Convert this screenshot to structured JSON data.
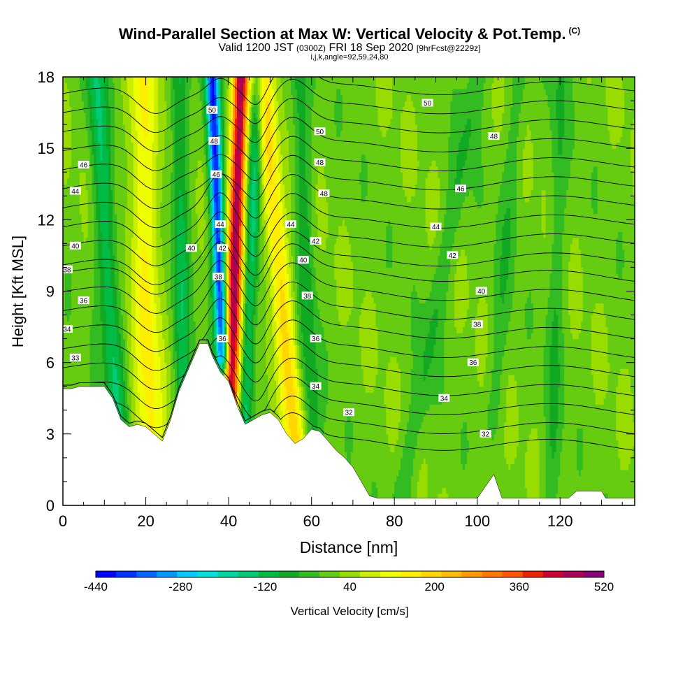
{
  "header": {
    "title": "Wind-Parallel Section at Max W: Vertical Velocity & Pot.Temp.",
    "title_mark": "(C)",
    "valid_prefix": "Valid 1200 JST",
    "valid_utc": "(0300Z)",
    "valid_date": "FRI 18 Sep 2020",
    "forecast": "[9hrFcst@2229z]",
    "params": "i,j,k,angle=92,59,24,80"
  },
  "chart_data": {
    "type": "heatmap",
    "xlabel": "Distance [nm]",
    "ylabel": "Height [Kft MSL]",
    "xlim": [
      0,
      138
    ],
    "ylim": [
      0,
      18
    ],
    "x_ticks": [
      0,
      20,
      40,
      60,
      80,
      100,
      120
    ],
    "y_ticks": [
      0,
      3,
      6,
      9,
      12,
      15,
      18
    ],
    "colorbar": {
      "label": "Vertical Velocity [cm/s]",
      "range": [
        -440,
        520
      ],
      "step": 40,
      "tick_labels": [
        "-440",
        "-280",
        "-120",
        "40",
        "200",
        "360",
        "520"
      ],
      "colors": [
        "#0000ff",
        "#0033ff",
        "#0066ff",
        "#0099ff",
        "#00ccff",
        "#00e0e0",
        "#00d6a0",
        "#00cc77",
        "#00bb44",
        "#11aa22",
        "#33bb22",
        "#66cc11",
        "#99dd00",
        "#ccee00",
        "#eeff00",
        "#ffee00",
        "#ffd700",
        "#ffbb00",
        "#ff9900",
        "#ff7700",
        "#ff5500",
        "#ee2200",
        "#cc0033",
        "#aa0055",
        "#880077"
      ]
    },
    "potential_temperature_contours": {
      "left_labels": [
        {
          "x": 3,
          "y": 6.2,
          "label": "33"
        },
        {
          "x": 1,
          "y": 7.4,
          "label": "34"
        },
        {
          "x": 5,
          "y": 8.6,
          "label": "36"
        },
        {
          "x": 1,
          "y": 9.9,
          "label": "38"
        },
        {
          "x": 3,
          "y": 10.9,
          "label": "40"
        },
        {
          "x": 3,
          "y": 13.2,
          "label": "44"
        },
        {
          "x": 5,
          "y": 14.3,
          "label": "46"
        }
      ],
      "updraft_labels": [
        {
          "x": 36,
          "y": 16.6,
          "label": "50"
        },
        {
          "x": 36.5,
          "y": 15.3,
          "label": "48"
        },
        {
          "x": 37,
          "y": 13.9,
          "label": "46"
        },
        {
          "x": 38,
          "y": 11.8,
          "label": "44"
        },
        {
          "x": 38.5,
          "y": 10.8,
          "label": "42"
        },
        {
          "x": 37.5,
          "y": 9.6,
          "label": "38"
        },
        {
          "x": 38.5,
          "y": 7.0,
          "label": "36"
        },
        {
          "x": 31,
          "y": 10.8,
          "label": "40"
        }
      ],
      "right_labels": [
        {
          "x": 62,
          "y": 15.7,
          "label": "50"
        },
        {
          "x": 62,
          "y": 14.4,
          "label": "48"
        },
        {
          "x": 63,
          "y": 13.1,
          "label": "48"
        },
        {
          "x": 61,
          "y": 11.1,
          "label": "42"
        },
        {
          "x": 58,
          "y": 10.3,
          "label": "40"
        },
        {
          "x": 59,
          "y": 8.8,
          "label": "38"
        },
        {
          "x": 61,
          "y": 7.0,
          "label": "36"
        },
        {
          "x": 61,
          "y": 5.0,
          "label": "34"
        },
        {
          "x": 69,
          "y": 3.9,
          "label": "32"
        },
        {
          "x": 88,
          "y": 16.9,
          "label": "50"
        },
        {
          "x": 104,
          "y": 15.5,
          "label": "48"
        },
        {
          "x": 96,
          "y": 13.3,
          "label": "46"
        },
        {
          "x": 55,
          "y": 11.8,
          "label": "44"
        },
        {
          "x": 90,
          "y": 11.7,
          "label": "44"
        },
        {
          "x": 94,
          "y": 10.5,
          "label": "42"
        },
        {
          "x": 101,
          "y": 9.0,
          "label": "40"
        },
        {
          "x": 100,
          "y": 7.6,
          "label": "38"
        },
        {
          "x": 99,
          "y": 6.0,
          "label": "36"
        },
        {
          "x": 92,
          "y": 4.5,
          "label": "34"
        },
        {
          "x": 102,
          "y": 3.0,
          "label": "32"
        }
      ],
      "levels": [
        {
          "label": "32",
          "y0": 2.5
        },
        {
          "label": "33",
          "y0": 3.2
        },
        {
          "label": "34",
          "y0": 4.0
        },
        {
          "label": "35",
          "y0": 4.8
        },
        {
          "label": "36",
          "y0": 5.6
        },
        {
          "label": "37",
          "y0": 6.4
        },
        {
          "label": "38",
          "y0": 7.2
        },
        {
          "label": "39",
          "y0": 8.0
        },
        {
          "label": "40",
          "y0": 8.8
        },
        {
          "label": "41",
          "y0": 9.6
        },
        {
          "label": "42",
          "y0": 10.4
        },
        {
          "label": "43",
          "y0": 11.2
        },
        {
          "label": "44",
          "y0": 12.0
        },
        {
          "label": "45",
          "y0": 12.8
        },
        {
          "label": "46",
          "y0": 13.6
        },
        {
          "label": "47",
          "y0": 14.4
        },
        {
          "label": "48",
          "y0": 15.2
        },
        {
          "label": "49",
          "y0": 16.0
        },
        {
          "label": "50",
          "y0": 16.8
        },
        {
          "label": "51",
          "y0": 17.6
        }
      ]
    },
    "terrain": [
      [
        0,
        4.9
      ],
      [
        2,
        4.9
      ],
      [
        4,
        5.0
      ],
      [
        8,
        5.0
      ],
      [
        10,
        5.0
      ],
      [
        12,
        4.5
      ],
      [
        14,
        3.6
      ],
      [
        16,
        3.3
      ],
      [
        18,
        3.4
      ],
      [
        20,
        3.3
      ],
      [
        22,
        3.0
      ],
      [
        24,
        2.7
      ],
      [
        26,
        3.6
      ],
      [
        28,
        4.8
      ],
      [
        30,
        5.6
      ],
      [
        33,
        6.8
      ],
      [
        35,
        6.8
      ],
      [
        36,
        6.3
      ],
      [
        38,
        5.6
      ],
      [
        40,
        5.2
      ],
      [
        42,
        4.2
      ],
      [
        44,
        3.4
      ],
      [
        46,
        3.6
      ],
      [
        48,
        3.8
      ],
      [
        50,
        3.9
      ],
      [
        52,
        3.6
      ],
      [
        54,
        3.0
      ],
      [
        56,
        2.6
      ],
      [
        58,
        2.8
      ],
      [
        60,
        3.2
      ],
      [
        62,
        3.1
      ],
      [
        64,
        2.7
      ],
      [
        66,
        2.3
      ],
      [
        68,
        2.0
      ],
      [
        70,
        1.6
      ],
      [
        72,
        1.0
      ],
      [
        74,
        0.4
      ],
      [
        76,
        0.3
      ],
      [
        100,
        0.3
      ],
      [
        104,
        1.3
      ],
      [
        106,
        0.3
      ],
      [
        122,
        0.3
      ],
      [
        124,
        0.6
      ],
      [
        130,
        0.6
      ],
      [
        131,
        0.3
      ],
      [
        138,
        0.3
      ]
    ],
    "w_features": [
      {
        "kind": "updraft",
        "w": 480,
        "x_bottom": 40.5,
        "x_top": 43,
        "half_width": 2.0,
        "y_start": 4.5
      },
      {
        "kind": "downdraft",
        "w": -420,
        "x_bottom": 38.5,
        "x_top": 36,
        "half_width": 1.6,
        "y_start": 6.5
      },
      {
        "kind": "updraft",
        "w": 190,
        "x_bottom": 56,
        "x_top": 48,
        "half_width": 2.6,
        "y_start": 2.8
      },
      {
        "kind": "updraft",
        "w": 140,
        "x_bottom": 21,
        "x_top": 19,
        "half_width": 3.5,
        "y_start": 3.0
      },
      {
        "kind": "downdraft",
        "w": -140,
        "x_bottom": 13,
        "x_top": 8,
        "half_width": 2.5,
        "y_start": 3.8
      },
      {
        "kind": "downdraft",
        "w": -160,
        "x_bottom": 44,
        "x_top": 47,
        "half_width": 1.8,
        "y_start": 3.5
      },
      {
        "kind": "downdraft",
        "w": -120,
        "x_bottom": 29,
        "x_top": 28,
        "half_width": 2.0,
        "y_start": 4.5
      },
      {
        "kind": "downdraft",
        "w": -90,
        "x_bottom": 60,
        "x_top": 57,
        "half_width": 2.2,
        "y_start": 3.0
      },
      {
        "kind": "downdraft",
        "w": -60,
        "x_bottom": 82,
        "x_top": 100,
        "half_width": 2.5,
        "y_start": 0.5
      },
      {
        "kind": "downdraft",
        "w": -60,
        "x_bottom": 118,
        "x_top": 120,
        "half_width": 2.0,
        "y_start": 0.5
      },
      {
        "kind": "downdraft",
        "w": -50,
        "x_bottom": 104,
        "x_top": 110,
        "half_width": 2.2,
        "y_start": 4.0
      }
    ]
  }
}
